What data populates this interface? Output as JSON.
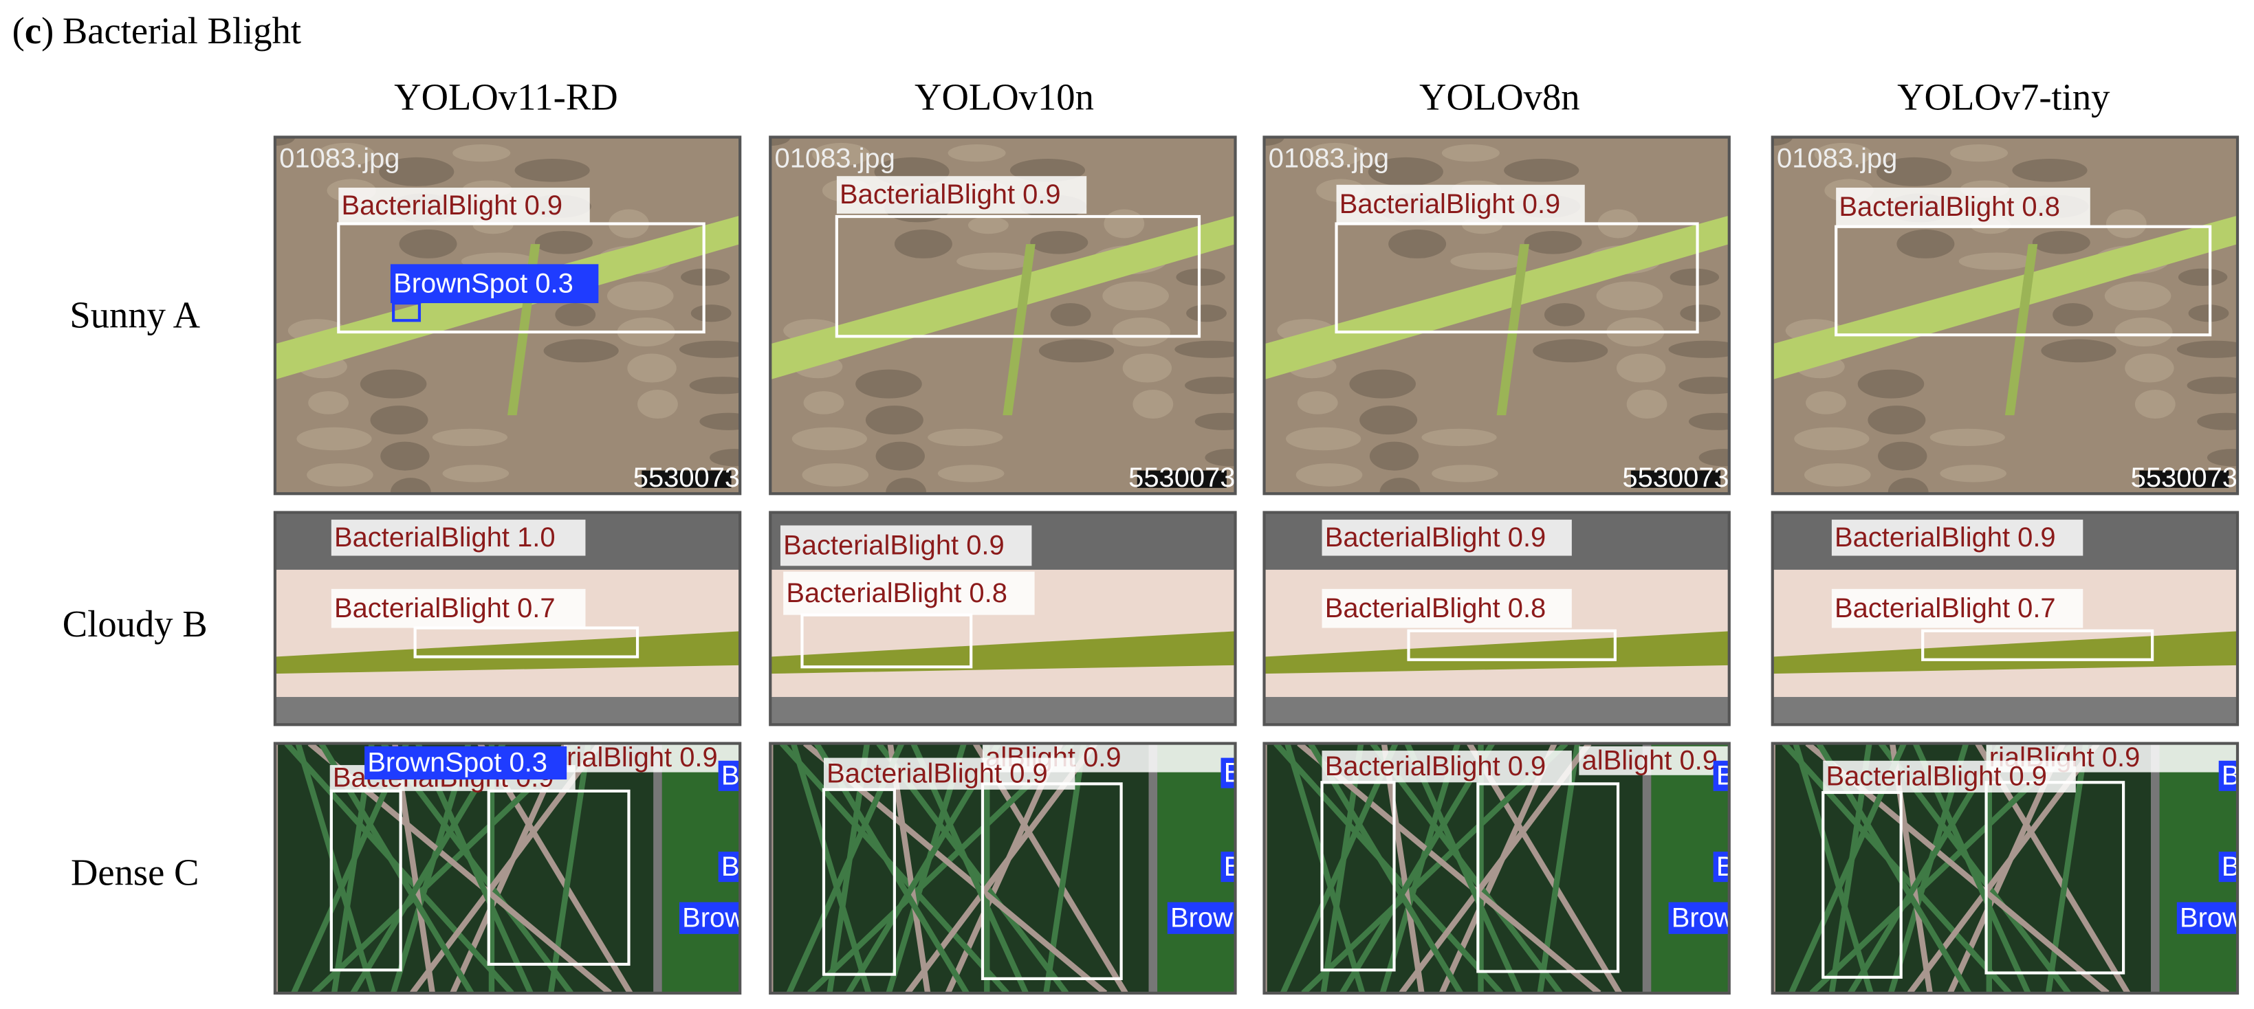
{
  "title": {
    "open": "(",
    "label": "c",
    "close": ")",
    "text": "Bacterial Blight"
  },
  "columns": [
    "YOLOv11-RD",
    "YOLOv10n",
    "YOLOv8n",
    "YOLOv7-tiny"
  ],
  "rows": [
    {
      "label": "Sunny A",
      "cells": [
        {
          "filename": "01083.jpg",
          "watermark": "5530073",
          "detections": [
            {
              "text": "BacterialBlight 0.9",
              "color": "#ffffff"
            },
            {
              "text": "BrownSpot 0.3",
              "color": "#1f3cff"
            }
          ]
        },
        {
          "filename": "01083.jpg",
          "watermark": "5530073",
          "detections": [
            {
              "text": "BacterialBlight 0.9",
              "color": "#ffffff"
            }
          ]
        },
        {
          "filename": "01083.jpg",
          "watermark": "5530073",
          "detections": [
            {
              "text": "BacterialBlight 0.9",
              "color": "#ffffff"
            }
          ]
        },
        {
          "filename": "01083.jpg",
          "watermark": "5530073",
          "detections": [
            {
              "text": "BacterialBlight 0.8",
              "color": "#ffffff"
            }
          ]
        }
      ]
    },
    {
      "label": "Cloudy B",
      "cells": [
        {
          "detections": [
            {
              "text": "BacterialBlight 1.0",
              "color": "#ffffff"
            },
            {
              "text": "BacterialBlight 0.7",
              "color": "#ffffff"
            }
          ]
        },
        {
          "detections": [
            {
              "text": "BacterialBlight 0.9",
              "color": "#ffffff"
            },
            {
              "text": "BacterialBlight 0.8",
              "color": "#ffffff"
            }
          ]
        },
        {
          "detections": [
            {
              "text": "BacterialBlight 0.9",
              "color": "#ffffff"
            },
            {
              "text": "BacterialBlight 0.8",
              "color": "#ffffff"
            }
          ]
        },
        {
          "detections": [
            {
              "text": "BacterialBlight 0.9",
              "color": "#ffffff"
            },
            {
              "text": "BacterialBlight 0.7",
              "color": "#ffffff"
            }
          ]
        }
      ]
    },
    {
      "label": "Dense C",
      "cells": [
        {
          "detections": [
            {
              "text": "rialBlight 0.9",
              "color": "#ffffff"
            },
            {
              "text": "BacterialBlight 0.9",
              "color": "#ffffff"
            },
            {
              "text": "BrownSpot 0.3",
              "color": "#1f3cff"
            },
            {
              "text": "B",
              "color": "#1f3cff"
            },
            {
              "text": "B",
              "color": "#1f3cff"
            },
            {
              "text": "Brow",
              "color": "#1f3cff"
            }
          ]
        },
        {
          "detections": [
            {
              "text": "alBlight 0.9",
              "color": "#ffffff"
            },
            {
              "text": "BacterialBlight 0.9",
              "color": "#ffffff"
            },
            {
              "text": "B",
              "color": "#1f3cff"
            },
            {
              "text": "B",
              "color": "#1f3cff"
            },
            {
              "text": "Brow",
              "color": "#1f3cff"
            }
          ]
        },
        {
          "detections": [
            {
              "text": "alBlight 0.9",
              "color": "#ffffff"
            },
            {
              "text": "BacterialBlight 0.9",
              "color": "#ffffff"
            },
            {
              "text": "B",
              "color": "#1f3cff"
            },
            {
              "text": "B",
              "color": "#1f3cff"
            },
            {
              "text": "Brow",
              "color": "#1f3cff"
            }
          ]
        },
        {
          "detections": [
            {
              "text": "rialBlight 0.9",
              "color": "#ffffff"
            },
            {
              "text": "BacterialBlight 0.9",
              "color": "#ffffff"
            },
            {
              "text": "B",
              "color": "#1f3cff"
            },
            {
              "text": "B",
              "color": "#1f3cff"
            },
            {
              "text": "Brow",
              "color": "#1f3cff"
            }
          ]
        }
      ]
    }
  ]
}
